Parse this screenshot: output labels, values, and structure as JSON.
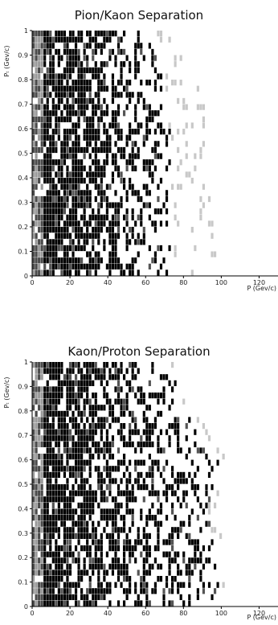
{
  "chart_data": [
    {
      "type": "heatmap",
      "title": "Pion/Kaon Separation",
      "xlabel": "P (Gev/c)",
      "ylabel": "Pₜ (Gev/c)",
      "xlim": [
        0,
        130
      ],
      "ylim": [
        0,
        1
      ],
      "x_ticks": [
        "0",
        "20",
        "40",
        "60",
        "80",
        "100",
        "120"
      ],
      "y_ticks": [
        "0",
        "0.1",
        "0.2",
        "0.3",
        "0.4",
        "0.5",
        "0.6",
        "0.7",
        "0.8",
        "0.9",
        "1"
      ],
      "cell_size": {
        "p": 1.5,
        "pt": 0.025
      },
      "extent_profile": [
        {
          "pt": 0.0,
          "dark_p": 74,
          "faint_p": 98
        },
        {
          "pt": 0.2,
          "dark_p": 75,
          "faint_p": 96
        },
        {
          "pt": 0.4,
          "dark_p": 73,
          "faint_p": 92
        },
        {
          "pt": 0.6,
          "dark_p": 72,
          "faint_p": 94
        },
        {
          "pt": 0.8,
          "dark_p": 70,
          "faint_p": 86
        },
        {
          "pt": 1.0,
          "dark_p": 62,
          "faint_p": 72
        }
      ],
      "grid": false,
      "legend": "none"
    },
    {
      "type": "heatmap",
      "title": "Kaon/Proton Separation",
      "xlabel": "P (Gev/c)",
      "ylabel": "Pₜ (Gev/c)",
      "xlim": [
        0,
        130
      ],
      "ylim": [
        0,
        1
      ],
      "x_ticks": [
        "0",
        "20",
        "40",
        "60",
        "80",
        "100",
        "120"
      ],
      "y_ticks": [
        "0",
        "0.1",
        "0.2",
        "0.3",
        "0.4",
        "0.5",
        "0.6",
        "0.7",
        "0.8",
        "0.9",
        "1"
      ],
      "cell_size": {
        "p": 1.5,
        "pt": 0.025
      },
      "extent_profile": [
        {
          "pt": 0.0,
          "dark_p": 100,
          "faint_p": 104
        },
        {
          "pt": 0.2,
          "dark_p": 96,
          "faint_p": 100
        },
        {
          "pt": 0.4,
          "dark_p": 92,
          "faint_p": 98
        },
        {
          "pt": 0.6,
          "dark_p": 98,
          "faint_p": 106
        },
        {
          "pt": 0.8,
          "dark_p": 80,
          "faint_p": 86
        },
        {
          "pt": 1.0,
          "dark_p": 72,
          "faint_p": 78
        }
      ],
      "grid": false,
      "legend": "none"
    }
  ]
}
